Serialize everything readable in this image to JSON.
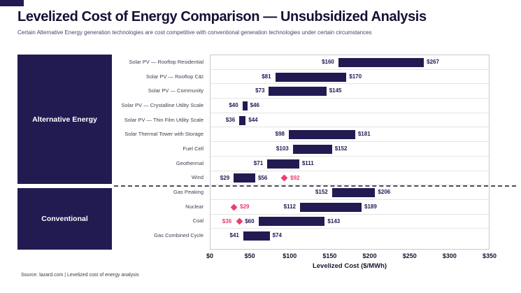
{
  "header": {
    "title": "Levelized Cost of Energy Comparison — Unsubsidized Analysis",
    "subtitle": "Certain Alternative Energy generation technologies are cost competitive with conventional generation technologies under certain circumstances"
  },
  "sidebar": {
    "groups": [
      {
        "label": "Alternative Energy"
      },
      {
        "label": "Conventional"
      }
    ]
  },
  "chart_data": {
    "type": "bar",
    "orientation": "horizontal-range",
    "title": "Levelized Cost of Energy Comparison — Unsubsidized Analysis",
    "xlabel": "Levelized Cost ($/MWh)",
    "xlim": [
      0,
      350
    ],
    "xtick_labels": [
      "$0",
      "$50",
      "$100",
      "$150",
      "$200",
      "$250",
      "$300",
      "$350"
    ],
    "bar_color": "#221b52",
    "marker_color": "#ed3d70",
    "grid": "row-separators",
    "rows": [
      {
        "label": "Solar PV — Rooftop Residential",
        "group": "Alternative Energy",
        "low": 160,
        "high": 267,
        "low_label": "$160",
        "high_label": "$267"
      },
      {
        "label": "Solar PV — Rooftop C&I",
        "group": "Alternative Energy",
        "low": 81,
        "high": 170,
        "low_label": "$81",
        "high_label": "$170"
      },
      {
        "label": "Solar PV — Community",
        "group": "Alternative Energy",
        "low": 73,
        "high": 145,
        "low_label": "$73",
        "high_label": "$145"
      },
      {
        "label": "Solar PV — Crystalline Utility Scale",
        "group": "Alternative Energy",
        "low": 40,
        "high": 46,
        "low_label": "$40",
        "high_label": "$46"
      },
      {
        "label": "Solar PV — Thin Film Utility Scale",
        "group": "Alternative Energy",
        "low": 36,
        "high": 44,
        "low_label": "$36",
        "high_label": "$44"
      },
      {
        "label": "Solar Thermal Tower with Storage",
        "group": "Alternative Energy",
        "low": 98,
        "high": 181,
        "low_label": "$98",
        "high_label": "$181"
      },
      {
        "label": "Fuel Cell",
        "group": "Alternative Energy",
        "low": 103,
        "high": 152,
        "low_label": "$103",
        "high_label": "$152"
      },
      {
        "label": "Geothermal",
        "group": "Alternative Energy",
        "low": 71,
        "high": 111,
        "low_label": "$71",
        "high_label": "$111"
      },
      {
        "label": "Wind",
        "group": "Alternative Energy",
        "low": 29,
        "high": 56,
        "low_label": "$29",
        "high_label": "$56",
        "marker": 92,
        "marker_label": "$92",
        "marker_label_side": "right"
      },
      {
        "label": "Gas Peaking",
        "group": "Conventional",
        "low": 152,
        "high": 206,
        "low_label": "$152",
        "high_label": "$206"
      },
      {
        "label": "Nuclear",
        "group": "Conventional",
        "low": 112,
        "high": 189,
        "low_label": "$112",
        "high_label": "$189",
        "marker": 29,
        "marker_label": "$29",
        "marker_label_side": "right"
      },
      {
        "label": "Coal",
        "group": "Conventional",
        "low": 60,
        "high": 143,
        "low_label": "$60",
        "high_label": "$143",
        "marker": 36,
        "marker_label": "$36",
        "marker_label_side": "left"
      },
      {
        "label": "Gas Combined Cycle",
        "group": "Conventional",
        "low": 41,
        "high": 74,
        "low_label": "$41",
        "high_label": "$74"
      }
    ]
  },
  "footer": {
    "source": "Source: lazard.com | Levelized cost of energy analysis"
  }
}
